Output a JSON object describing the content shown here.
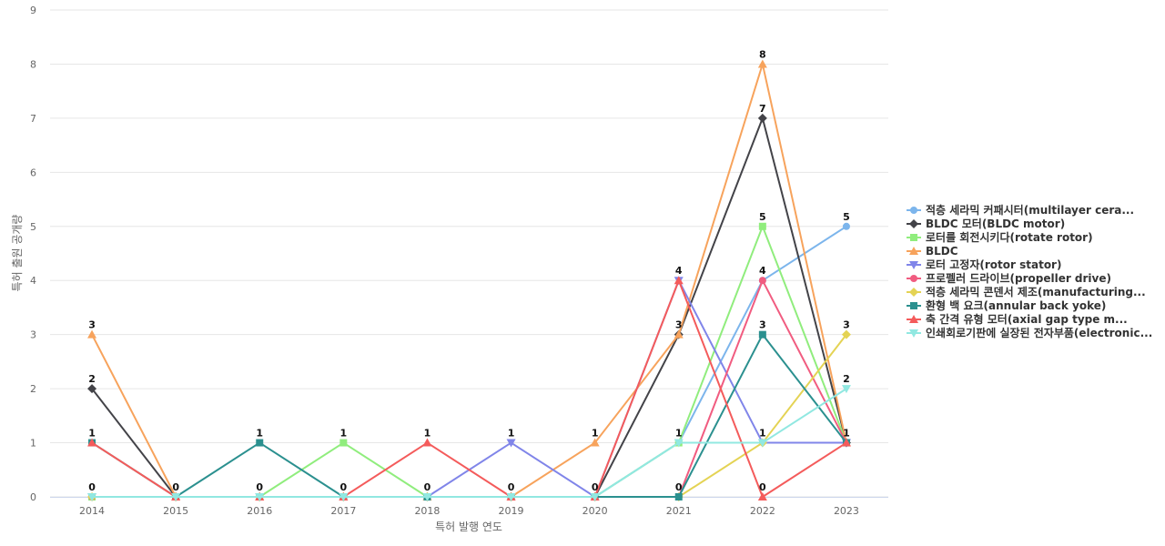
{
  "chart_data": {
    "type": "line",
    "xlabel": "특허 발행 연도",
    "ylabel": "특허 출원 공개량",
    "ylim": [
      0,
      9
    ],
    "yticks": [
      0,
      1,
      2,
      3,
      4,
      5,
      6,
      7,
      8,
      9
    ],
    "categories": [
      "2014",
      "2015",
      "2016",
      "2017",
      "2018",
      "2019",
      "2020",
      "2021",
      "2022",
      "2023"
    ],
    "grid": true,
    "legend_position": "right",
    "series": [
      {
        "name": "적층 세라믹 커패시터(multilayer cera...",
        "color": "#7cb5ec",
        "marker": "circle",
        "values": [
          0,
          0,
          0,
          0,
          0,
          0,
          0,
          1,
          4,
          5
        ]
      },
      {
        "name": "BLDC 모터(BLDC motor)",
        "color": "#434348",
        "marker": "diamond",
        "values": [
          2,
          0,
          0,
          0,
          0,
          0,
          0,
          3,
          7,
          1
        ]
      },
      {
        "name": "로터를 회전시키다(rotate rotor)",
        "color": "#90ed7d",
        "marker": "square",
        "values": [
          0,
          0,
          0,
          1,
          0,
          0,
          0,
          1,
          5,
          1
        ]
      },
      {
        "name": "BLDC",
        "color": "#f7a35c",
        "marker": "triangle",
        "values": [
          3,
          0,
          0,
          0,
          0,
          0,
          1,
          3,
          8,
          1
        ]
      },
      {
        "name": "로터 고정자(rotor stator)",
        "color": "#8085e9",
        "marker": "triangle-down",
        "values": [
          0,
          0,
          0,
          0,
          0,
          1,
          0,
          4,
          1,
          1
        ]
      },
      {
        "name": "프로펠러 드라이브(propeller drive)",
        "color": "#f15c80",
        "marker": "circle",
        "values": [
          0,
          0,
          0,
          0,
          0,
          0,
          0,
          0,
          4,
          1
        ]
      },
      {
        "name": "적층 세라믹 콘덴서 제조(manufacturing...",
        "color": "#e4d354",
        "marker": "diamond",
        "values": [
          0,
          0,
          0,
          0,
          0,
          0,
          0,
          0,
          1,
          3
        ]
      },
      {
        "name": "환형 백 요크(annular back yoke)",
        "color": "#2b908f",
        "marker": "square",
        "values": [
          1,
          0,
          1,
          0,
          0,
          0,
          0,
          0,
          3,
          1
        ]
      },
      {
        "name": "축 간격 유형 모터(axial gap type m...",
        "color": "#f45b5b",
        "marker": "triangle",
        "values": [
          1,
          0,
          0,
          0,
          1,
          0,
          0,
          4,
          0,
          1
        ]
      },
      {
        "name": "인쇄회로기판에 실장된 전자부품(electronic...",
        "color": "#91e8e1",
        "marker": "triangle-down",
        "values": [
          0,
          0,
          0,
          0,
          0,
          0,
          0,
          1,
          1,
          2
        ]
      }
    ],
    "data_labels": [
      {
        "series": 3,
        "x": "2014",
        "y": 3
      },
      {
        "series": 1,
        "x": "2014",
        "y": 2
      },
      {
        "series": 8,
        "x": "2014",
        "y": 1
      },
      {
        "series": 0,
        "x": "2014",
        "y": 0
      },
      {
        "series": 0,
        "x": "2015",
        "y": 0
      },
      {
        "series": 7,
        "x": "2016",
        "y": 1
      },
      {
        "series": 0,
        "x": "2016",
        "y": 0
      },
      {
        "series": 2,
        "x": "2017",
        "y": 1
      },
      {
        "series": 0,
        "x": "2017",
        "y": 0
      },
      {
        "series": 8,
        "x": "2018",
        "y": 1
      },
      {
        "series": 0,
        "x": "2018",
        "y": 0
      },
      {
        "series": 4,
        "x": "2019",
        "y": 1
      },
      {
        "series": 0,
        "x": "2019",
        "y": 0
      },
      {
        "series": 3,
        "x": "2020",
        "y": 1
      },
      {
        "series": 0,
        "x": "2020",
        "y": 0
      },
      {
        "series": 8,
        "x": "2021",
        "y": 4
      },
      {
        "series": 3,
        "x": "2021",
        "y": 3
      },
      {
        "series": 2,
        "x": "2021",
        "y": 1
      },
      {
        "series": 7,
        "x": "2021",
        "y": 0
      },
      {
        "series": 3,
        "x": "2022",
        "y": 8
      },
      {
        "series": 1,
        "x": "2022",
        "y": 7
      },
      {
        "series": 2,
        "x": "2022",
        "y": 5
      },
      {
        "series": 5,
        "x": "2022",
        "y": 4
      },
      {
        "series": 7,
        "x": "2022",
        "y": 3
      },
      {
        "series": 4,
        "x": "2022",
        "y": 1
      },
      {
        "series": 8,
        "x": "2022",
        "y": 0
      },
      {
        "series": 0,
        "x": "2023",
        "y": 5
      },
      {
        "series": 6,
        "x": "2023",
        "y": 3
      },
      {
        "series": 9,
        "x": "2023",
        "y": 2
      },
      {
        "series": 7,
        "x": "2023",
        "y": 1
      }
    ]
  }
}
